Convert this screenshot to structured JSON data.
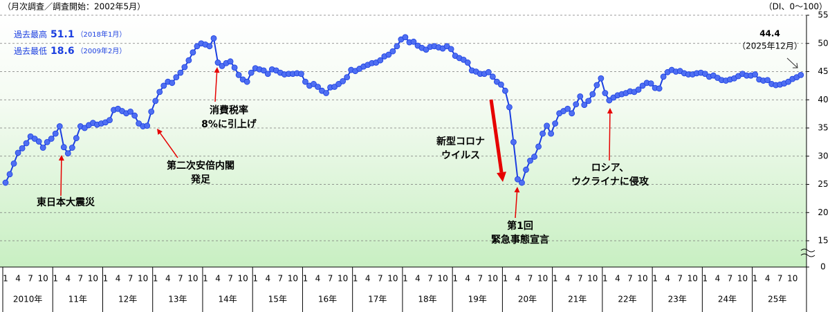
{
  "chart_data": {
    "type": "line",
    "subtitle": "（月次調査／調査開始：2002年5月）",
    "y_axis_label": "（DI、0～100）",
    "record_high": {
      "label": "過去最高",
      "value": 51.1,
      "date": "（2018年1月）"
    },
    "record_low": {
      "label": "過去最低",
      "value": 18.6,
      "date": "（2009年2月）"
    },
    "latest_date": "（2025年12月）",
    "color": "#1a3ee0",
    "marker_color": "#4f6ff2",
    "annotation_color": "#e60000",
    "grid": true,
    "ylim": [
      0,
      55
    ],
    "yticks": [
      0,
      15,
      20,
      25,
      30,
      35,
      40,
      45,
      50,
      55
    ],
    "years": [
      "2010年",
      "11年",
      "12年",
      "13年",
      "14年",
      "15年",
      "16年",
      "17年",
      "18年",
      "19年",
      "20年",
      "21年",
      "22年",
      "23年",
      "24年",
      "25年"
    ],
    "categories": [
      "1",
      null,
      null,
      "4",
      null,
      null,
      "7",
      null,
      null,
      "10",
      null,
      null,
      "1",
      null,
      null,
      "4",
      null,
      null,
      "7",
      null,
      null,
      "10",
      null,
      null,
      "1",
      null,
      null,
      "4",
      null,
      null,
      "7",
      null,
      null,
      "10",
      null,
      null,
      "1",
      null,
      null,
      "4",
      null,
      null,
      "7",
      null,
      null,
      "10",
      null,
      null,
      "1",
      null,
      null,
      "4",
      null,
      null,
      "7",
      null,
      null,
      "10",
      null,
      null,
      "1",
      null,
      null,
      "4",
      null,
      null,
      "7",
      null,
      null,
      "10",
      null,
      null,
      "1",
      null,
      null,
      "4",
      null,
      null,
      "7",
      null,
      null,
      "10",
      null,
      null,
      "1",
      null,
      null,
      "4",
      null,
      null,
      "7",
      null,
      null,
      "10",
      null,
      null,
      "1",
      null,
      null,
      "4",
      null,
      null,
      "7",
      null,
      null,
      "10",
      null,
      null,
      "1",
      null,
      null,
      "4",
      null,
      null,
      "7",
      null,
      null,
      "10",
      null,
      null,
      "1",
      null,
      null,
      "4",
      null,
      null,
      "7",
      null,
      null,
      "10",
      null,
      null,
      "1",
      null,
      null,
      "4",
      null,
      null,
      "7",
      null,
      null,
      "10",
      null,
      null,
      "1",
      null,
      null,
      "4",
      null,
      null,
      "7",
      null,
      null,
      "10",
      null,
      null,
      "1",
      null,
      null,
      "4",
      null,
      null,
      "7",
      null,
      null,
      "10",
      null,
      null,
      "1",
      null,
      null,
      "4",
      null,
      null,
      "7",
      null,
      null,
      "10",
      null,
      null,
      "1",
      null,
      null,
      "4",
      null,
      null,
      "7",
      null,
      null,
      "10",
      null,
      null
    ],
    "values": [
      25.3,
      26.8,
      28.7,
      30.6,
      31.4,
      32.3,
      33.5,
      33.1,
      32.6,
      31.5,
      32.5,
      33.1,
      34.0,
      35.3,
      31.6,
      30.5,
      31.5,
      33.2,
      35.3,
      35.0,
      35.5,
      35.9,
      35.6,
      35.8,
      36.0,
      36.4,
      38.2,
      38.4,
      38.0,
      37.6,
      37.9,
      37.2,
      35.8,
      35.3,
      35.4,
      37.9,
      39.8,
      41.4,
      42.5,
      43.2,
      43.0,
      44.0,
      44.8,
      45.8,
      47.0,
      48.4,
      49.5,
      50.0,
      49.8,
      49.5,
      50.9,
      46.6,
      46.0,
      46.5,
      46.8,
      45.7,
      44.4,
      43.6,
      43.2,
      44.8,
      45.6,
      45.4,
      45.2,
      44.6,
      45.4,
      45.2,
      44.8,
      44.5,
      44.6,
      44.6,
      44.7,
      44.6,
      43.2,
      42.5,
      42.8,
      42.3,
      41.6,
      41.2,
      42.2,
      42.3,
      42.8,
      43.3,
      44.0,
      45.3,
      45.1,
      45.5,
      45.9,
      46.2,
      46.5,
      46.6,
      47.0,
      47.7,
      48.0,
      48.6,
      49.5,
      50.7,
      51.1,
      50.2,
      50.3,
      49.6,
      49.2,
      48.9,
      49.4,
      49.5,
      49.3,
      49.1,
      49.5,
      49.0,
      47.8,
      47.4,
      47.1,
      46.6,
      45.2,
      45.0,
      44.6,
      44.6,
      44.9,
      44.1,
      43.2,
      42.7,
      41.6,
      38.7,
      32.5,
      25.9,
      25.3,
      27.6,
      29.2,
      29.9,
      31.7,
      34.0,
      35.4,
      34.0,
      35.8,
      37.6,
      38.0,
      38.4,
      37.6,
      39.2,
      40.6,
      39.1,
      39.8,
      41.0,
      42.6,
      43.8,
      41.2,
      39.9,
      40.4,
      40.8,
      41.0,
      41.2,
      41.5,
      41.4,
      41.8,
      42.5,
      43.0,
      42.9,
      42.1,
      42.0,
      44.1,
      44.9,
      45.3,
      45.0,
      45.1,
      44.7,
      44.5,
      44.5,
      44.7,
      44.8,
      44.6,
      44.1,
      44.3,
      43.9,
      43.5,
      43.4,
      43.6,
      43.8,
      44.2,
      44.6,
      44.3,
      44.3,
      44.5,
      43.6,
      43.4,
      43.5,
      42.8,
      42.6,
      42.7,
      42.9,
      43.2,
      43.7,
      44.0,
      44.4
    ],
    "annotations": [
      [
        "東日本大震災"
      ],
      [
        "第二次安倍内閣",
        "発足"
      ],
      [
        "消費税率",
        "8%に引上げ"
      ],
      [
        "新型コロナ",
        "ウイルス"
      ],
      [
        "第1回",
        "緊急事態宣言"
      ],
      [
        "ロシア、",
        "ウクライナに侵攻"
      ]
    ]
  }
}
